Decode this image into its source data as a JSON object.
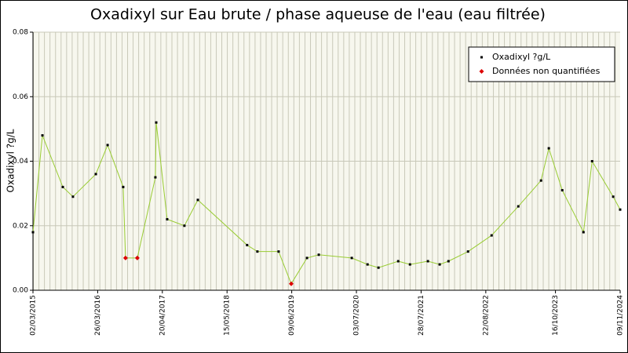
{
  "chart_data": {
    "type": "line",
    "title": "Oxadixyl sur Eau brute / phase aqueuse de l'eau (eau filtrée)",
    "y_label": "Oxadixyl ?g/L",
    "x": [
      "02/03/2015",
      "28/04/2015",
      "29/08/2015",
      "29/10/2015",
      "15/03/2016",
      "25/05/2016",
      "27/08/2016",
      "10/09/2016",
      "20/11/2016",
      "09/03/2017",
      "14/03/2017",
      "19/05/2017",
      "31/08/2017",
      "20/11/2017",
      "13/09/2018",
      "14/11/2018",
      "22/03/2019",
      "06/06/2019",
      "09/09/2019",
      "19/11/2019",
      "05/06/2020",
      "08/09/2020",
      "13/11/2020",
      "12/03/2021",
      "22/05/2021",
      "07/09/2021",
      "17/11/2021",
      "09/01/2022",
      "07/05/2022",
      "26/09/2022",
      "06/03/2023",
      "21/07/2023",
      "06/09/2023",
      "26/11/2023",
      "02/04/2024",
      "24/05/2024",
      "28/09/2024",
      "09/11/2024"
    ],
    "series": [
      {
        "name": "Oxadixyl ?g/L",
        "color": "#000000",
        "line_color": "#99cc33",
        "values": [
          0.018,
          0.048,
          0.032,
          0.029,
          0.036,
          0.045,
          0.032,
          0.01,
          0.01,
          0.035,
          0.052,
          0.022,
          0.02,
          0.028,
          0.014,
          0.012,
          0.012,
          0.002,
          0.01,
          0.011,
          0.01,
          0.008,
          0.007,
          0.009,
          0.008,
          0.009,
          0.008,
          0.009,
          0.012,
          0.017,
          0.026,
          0.034,
          0.044,
          0.031,
          0.018,
          0.04,
          0.029,
          0.025
        ]
      },
      {
        "name": "Données non quantifiées",
        "color": "#dd0000",
        "values": [
          null,
          null,
          null,
          null,
          null,
          null,
          null,
          0.01,
          0.01,
          null,
          null,
          null,
          null,
          null,
          null,
          null,
          null,
          0.002,
          null,
          null,
          null,
          null,
          null,
          null,
          null,
          null,
          null,
          null,
          null,
          null,
          null,
          null,
          null,
          null,
          null,
          null,
          null,
          null
        ]
      }
    ],
    "xlim": [
      "02/03/2015",
      "09/11/2024"
    ],
    "xticks": [
      "02/03/2015",
      "26/03/2016",
      "20/04/2017",
      "15/05/2018",
      "09/06/2019",
      "03/07/2020",
      "28/07/2021",
      "22/08/2022",
      "16/10/2023",
      "09/11/2024"
    ],
    "ylim": [
      0,
      0.08
    ],
    "yticks": [
      {
        "value": 0,
        "label": "0.00"
      },
      0.02,
      0.04,
      0.06,
      0.08
    ],
    "grid": true,
    "legend": "top-right"
  }
}
